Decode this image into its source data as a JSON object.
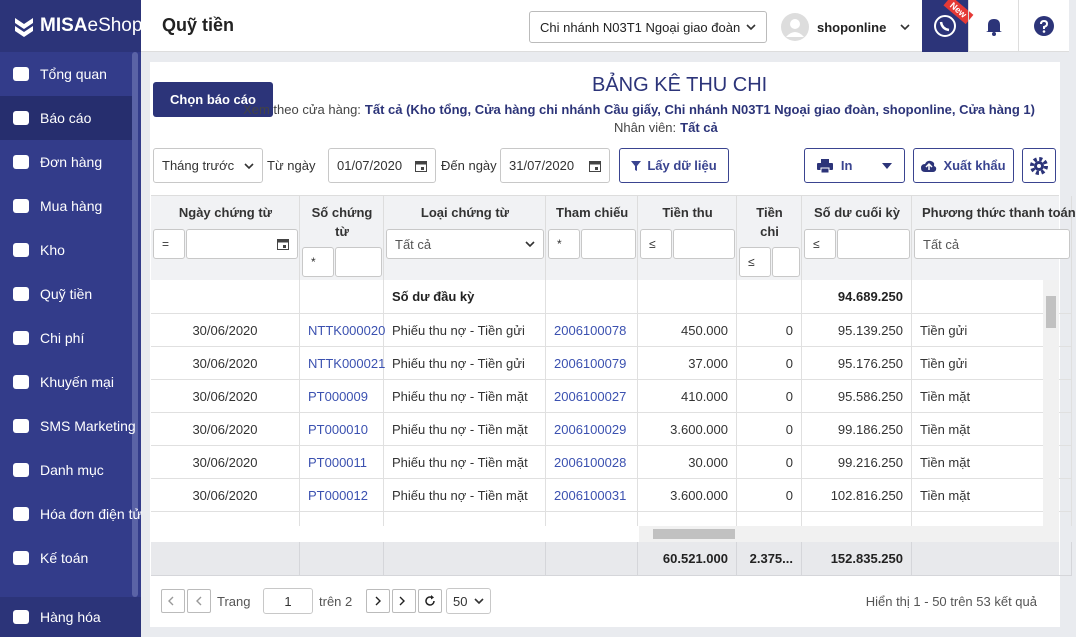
{
  "brand": {
    "main": "MISA",
    "sub": "eShop"
  },
  "sidebar": [
    "Tổng quan",
    "Báo cáo",
    "Đơn hàng",
    "Mua hàng",
    "Kho",
    "Quỹ tiền",
    "Chi phí",
    "Khuyến mại",
    "SMS Marketing",
    "Danh mục",
    "Hóa đơn điện tử",
    "Kế toán",
    "Hàng hóa"
  ],
  "header": {
    "title": "Quỹ tiền",
    "branch": "Chi nhánh N03T1 Ngoại giao đoàn",
    "user": "shoponline",
    "badge": "New"
  },
  "report": {
    "button": "Chọn báo cáo",
    "title": "BẢNG KÊ THU CHI",
    "store_label": "Xem theo cửa hàng:",
    "store_value": "Tất cả (Kho tổng, Cửa hàng chi nhánh Cầu giấy, Chi nhánh N03T1 Ngoại giao đoàn, shoponline, Cửa hàng 1)",
    "staff_label": "Nhân viên:",
    "staff_value": "Tất cả"
  },
  "filters": {
    "period": "Tháng trước",
    "from_label": "Từ ngày",
    "from": "01/07/2020",
    "to_label": "Đến ngày",
    "to": "31/07/2020",
    "fetch": "Lấy dữ liệu",
    "print": "In",
    "export": "Xuất khẩu"
  },
  "table": {
    "columns": [
      "Ngày chứng từ",
      "Số chứng từ",
      "Loại chứng từ",
      "Tham chiếu",
      "Tiền thu",
      "Tiền chi",
      "Số dư cuối kỳ",
      "Phương thức thanh toán"
    ],
    "filters": [
      {
        "op": "="
      },
      {
        "op": "*"
      },
      {
        "select": "Tất cả"
      },
      {
        "op": "*"
      },
      {
        "op": "≤"
      },
      {
        "op": "≤"
      },
      {
        "op": "≤"
      },
      {
        "select": "Tất cả"
      }
    ],
    "opening": {
      "label": "Số dư đầu kỳ",
      "balance": "94.689.250"
    },
    "rows": [
      [
        "30/06/2020",
        "NTTK000020",
        "Phiếu thu nợ - Tiền gửi",
        "2006100078",
        "450.000",
        "0",
        "95.139.250",
        "Tiền gửi"
      ],
      [
        "30/06/2020",
        "NTTK000021",
        "Phiếu thu nợ - Tiền gửi",
        "2006100079",
        "37.000",
        "0",
        "95.176.250",
        "Tiền gửi"
      ],
      [
        "30/06/2020",
        "PT000009",
        "Phiếu thu nợ - Tiền mặt",
        "2006100027",
        "410.000",
        "0",
        "95.586.250",
        "Tiền mặt"
      ],
      [
        "30/06/2020",
        "PT000010",
        "Phiếu thu nợ - Tiền mặt",
        "2006100029",
        "3.600.000",
        "0",
        "99.186.250",
        "Tiền mặt"
      ],
      [
        "30/06/2020",
        "PT000011",
        "Phiếu thu nợ - Tiền mặt",
        "2006100028",
        "30.000",
        "0",
        "99.216.250",
        "Tiền mặt"
      ],
      [
        "30/06/2020",
        "PT000012",
        "Phiếu thu nợ - Tiền mặt",
        "2006100031",
        "3.600.000",
        "0",
        "102.816.250",
        "Tiền mặt"
      ]
    ],
    "totals": {
      "income": "60.521.000",
      "expense": "2.375...",
      "balance": "152.835.250"
    }
  },
  "pagination": {
    "page_label": "Trang",
    "page": "1",
    "of": "trên 2",
    "size": "50",
    "summary": "Hiển thị 1 - 50 trên 53 kết quả"
  }
}
